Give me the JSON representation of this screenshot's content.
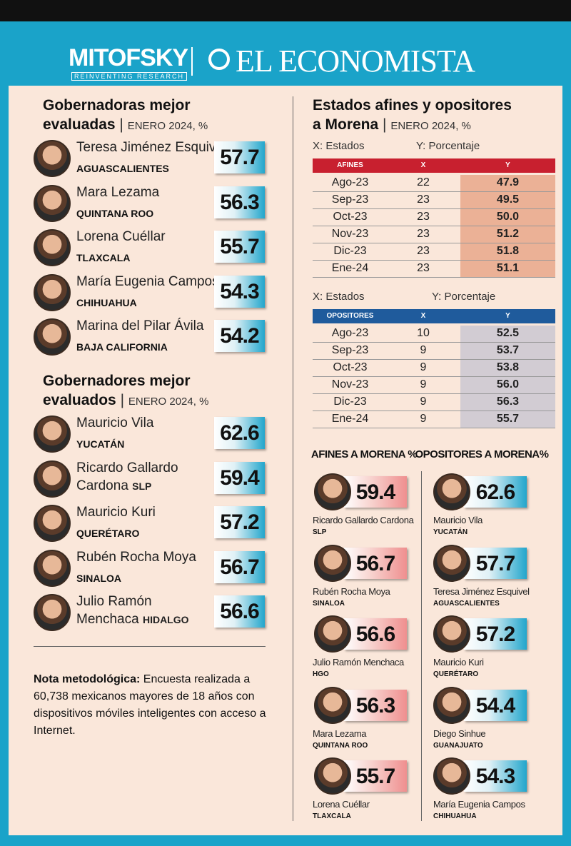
{
  "header": {
    "brand1": "MITOFSKY",
    "brand1_tagline": "REINVENTING RESEARCH",
    "brand2": "EL ECONOMISTA"
  },
  "gobernadoras": {
    "title": [
      "Gobernadoras mejor",
      "evaluadas"
    ],
    "period": "ENERO 2024, %",
    "items": [
      {
        "name": [
          "Teresa Jiménez Esquivel"
        ],
        "state": "AGUASCALIENTES",
        "value": 57.7
      },
      {
        "name": [
          "Mara Lezama"
        ],
        "state": "QUINTANA ROO",
        "value": 56.3
      },
      {
        "name": [
          "Lorena Cuéllar"
        ],
        "state": "TLAXCALA",
        "value": 55.7
      },
      {
        "name": [
          "María Eugenia Campos"
        ],
        "state": "CHIHUAHUA",
        "value": 54.3
      },
      {
        "name": [
          "Marina del Pilar Ávila"
        ],
        "state": "BAJA CALIFORNIA",
        "value": 54.2
      }
    ]
  },
  "gobernadores": {
    "title": [
      "Gobernadores mejor",
      "evaluados"
    ],
    "period": "ENERO 2024, %",
    "items": [
      {
        "name": [
          "Mauricio Vila"
        ],
        "state": "YUCATÁN",
        "value": 62.6
      },
      {
        "name": [
          "Ricardo Gallardo",
          "Cardona"
        ],
        "state": "SLP",
        "value": 59.4
      },
      {
        "name": [
          "Mauricio Kuri"
        ],
        "state": "QUERÉTARO",
        "value": 57.2
      },
      {
        "name": [
          "Rubén Rocha Moya"
        ],
        "state": "SINALOA",
        "value": 56.7
      },
      {
        "name": [
          "Julio Ramón",
          "Menchaca"
        ],
        "state": "HIDALGO",
        "value": 56.6
      }
    ]
  },
  "note": {
    "bold": "Nota metodológica:",
    "text": "Encuesta realizada a 60,738 mexicanos mayores de 18 años con dispositivos móviles inteligentes con acceso a Internet."
  },
  "estados": {
    "title": [
      "Estados afines y opositores",
      "a Morena"
    ],
    "period": "ENERO 2024, %",
    "tables": [
      {
        "x_label": "X: Estados",
        "y_label": "Y: Porcentaje",
        "columns": [
          "AFINES",
          "X",
          "Y"
        ],
        "rows": [
          [
            "Ago-23",
            22,
            47.9
          ],
          [
            "Sep-23",
            23,
            49.5
          ],
          [
            "Oct-23",
            23,
            "50.0"
          ],
          [
            "Nov-23",
            23,
            51.2
          ],
          [
            "Dic-23",
            23,
            51.8
          ],
          [
            "Ene-24",
            23,
            51.1
          ]
        ]
      },
      {
        "x_label": "X: Estados",
        "y_label": "Y: Porcentaje",
        "columns": [
          "OPOSITORES",
          "X",
          "Y"
        ],
        "rows": [
          [
            "Ago-23",
            10,
            52.5
          ],
          [
            "Sep-23",
            9,
            53.7
          ],
          [
            "Oct-23",
            9,
            53.8
          ],
          [
            "Nov-23",
            9,
            "56.0"
          ],
          [
            "Dic-23",
            9,
            56.3
          ],
          [
            "Ene-24",
            9,
            55.7
          ]
        ]
      }
    ]
  },
  "afines": {
    "title": "AFINES A MORENA %",
    "items": [
      {
        "name": "Ricardo Gallardo Cardona",
        "state": "SLP",
        "value": 59.4
      },
      {
        "name": "Rubén Rocha Moya",
        "state": "SINALOA",
        "value": 56.7
      },
      {
        "name": "Julio Ramón Menchaca",
        "state": "HGO",
        "value": 56.6
      },
      {
        "name": "Mara Lezama",
        "state": "QUINTANA ROO",
        "value": 56.3
      },
      {
        "name": "Lorena Cuéllar",
        "state": "TLAXCALA",
        "value": 55.7
      }
    ]
  },
  "opositores": {
    "title": "OPOSITORES A MORENA%",
    "items": [
      {
        "name": "Mauricio Vila",
        "state": "YUCATÁN",
        "value": 62.6
      },
      {
        "name": "Teresa Jiménez Esquivel",
        "state": "AGUASCALIENTES",
        "value": 57.7
      },
      {
        "name": "Mauricio Kuri",
        "state": "QUERÉTARO",
        "value": 57.2
      },
      {
        "name": "Diego Sinhue",
        "state": "GUANAJUATO",
        "value": 54.4
      },
      {
        "name": "María Eugenia Campos",
        "state": "CHIHUAHUA",
        "value": 54.3
      }
    ]
  }
}
